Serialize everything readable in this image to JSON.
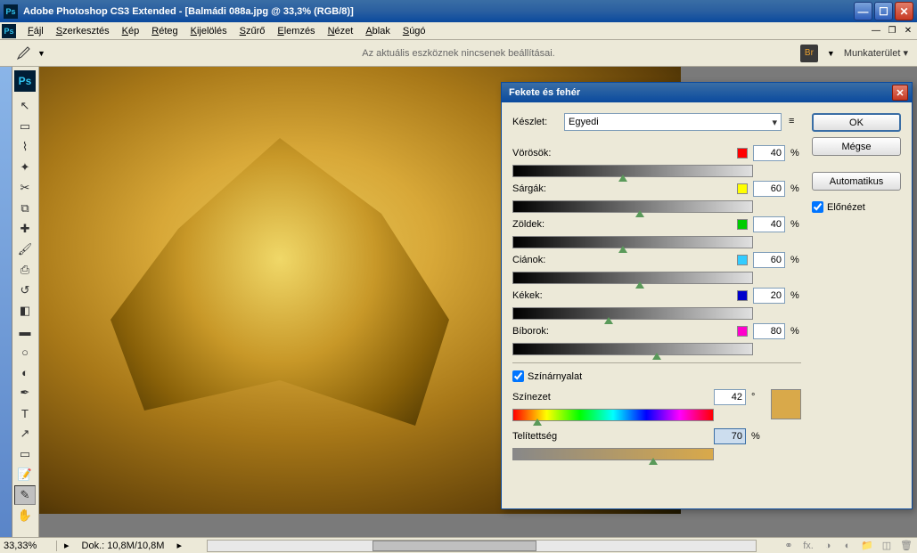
{
  "window": {
    "title": "Adobe Photoshop CS3 Extended - [Balmádi 088a.jpg @ 33,3% (RGB/8)]",
    "ps_badge": "Ps"
  },
  "menubar": {
    "items": [
      "Fájl",
      "Szerkesztés",
      "Kép",
      "Réteg",
      "Kijelölés",
      "Szűrő",
      "Elemzés",
      "Nézet",
      "Ablak",
      "Súgó"
    ]
  },
  "options_bar": {
    "message": "Az aktuális eszköznek nincsenek beállításai.",
    "workspace_label": "Munkaterület ▾",
    "bridge_badge": "Br"
  },
  "dialog": {
    "title": "Fekete és fehér",
    "preset_label": "Készlet:",
    "preset_value": "Egyedi",
    "colors": [
      {
        "label": "Vörösök:",
        "swatch": "#ff0000",
        "value": "40",
        "thumb_pct": 46
      },
      {
        "label": "Sárgák:",
        "swatch": "#ffff00",
        "value": "60",
        "thumb_pct": 53
      },
      {
        "label": "Zöldek:",
        "swatch": "#00cc00",
        "value": "40",
        "thumb_pct": 46
      },
      {
        "label": "Ciánok:",
        "swatch": "#33ccff",
        "value": "60",
        "thumb_pct": 53
      },
      {
        "label": "Kékek:",
        "swatch": "#0000cc",
        "value": "20",
        "thumb_pct": 40
      },
      {
        "label": "Bíborok:",
        "swatch": "#ff00cc",
        "value": "80",
        "thumb_pct": 60
      }
    ],
    "tint": {
      "checkbox_label": "Színárnyalat",
      "hue_label": "Színezet",
      "hue_value": "42",
      "hue_unit": "°",
      "hue_thumb_pct": 12,
      "sat_label": "Telítettség",
      "sat_value": "70",
      "sat_unit": "%",
      "sat_thumb_pct": 70,
      "swatch_color": "#d9a94a"
    },
    "buttons": {
      "ok": "OK",
      "cancel": "Mégse",
      "auto": "Automatikus",
      "preview": "Előnézet"
    },
    "pct": "%"
  },
  "statusbar": {
    "zoom": "33,33%",
    "doc": "Dok.: 10,8M/10,8M"
  }
}
